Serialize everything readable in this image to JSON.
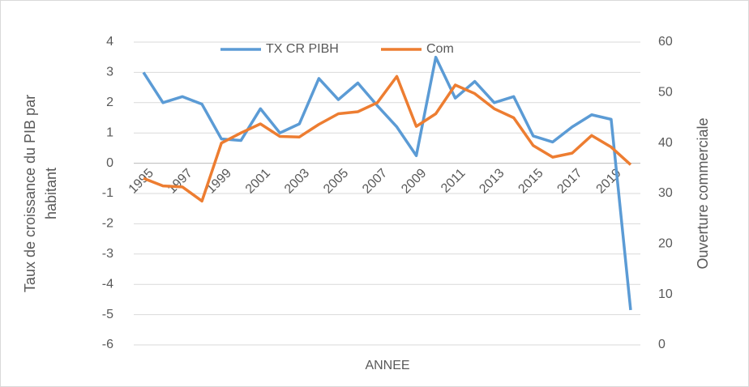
{
  "chart_data": {
    "type": "line",
    "ylabel": [
      "Taux de croissance du PIB par",
      "habitant"
    ],
    "y2label": "Ouverture commerciale",
    "xlabel": "ANNEE",
    "categories": [
      "1995",
      null,
      "1997",
      null,
      "1999",
      null,
      "2001",
      null,
      "2003",
      null,
      "2005",
      null,
      "2007",
      null,
      "2009",
      null,
      "2011",
      null,
      "2013",
      null,
      "2015",
      null,
      "2017",
      null,
      "2019",
      null
    ],
    "series": [
      {
        "name": "TX CR PIBH",
        "color": "#5b9bd5",
        "values": [
          3.0,
          2.0,
          2.2,
          1.95,
          0.8,
          0.75,
          1.8,
          1.0,
          1.3,
          2.8,
          2.1,
          2.65,
          1.9,
          1.2,
          0.25,
          3.5,
          2.15,
          2.7,
          2.0,
          2.2,
          0.9,
          0.7,
          1.2,
          1.6,
          1.45,
          -4.85
        ]
      },
      {
        "name": "Com",
        "color": "#ed7d31",
        "axis": "y2",
        "values": [
          33,
          31.5,
          31.3,
          28.5,
          40,
          42,
          43.8,
          41.3,
          41.2,
          43.7,
          45.8,
          46.2,
          48,
          53.2,
          43.3,
          45.8,
          51.5,
          49.8,
          46.8,
          45,
          39.5,
          37.2,
          38,
          41.5,
          39.2,
          35.7
        ]
      }
    ],
    "ylim": [
      -6,
      4
    ],
    "yticks": [
      -6,
      -5,
      -4,
      -3,
      -2,
      -1,
      0,
      1,
      2,
      3,
      4
    ],
    "y2lim": [
      0,
      60
    ],
    "y2ticks": [
      0,
      10,
      20,
      30,
      40,
      50,
      60
    ],
    "grid": true,
    "legend": "top"
  }
}
